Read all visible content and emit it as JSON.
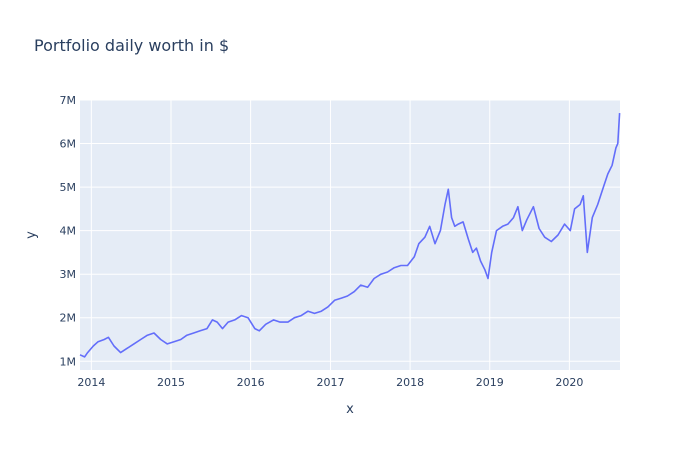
{
  "chart_data": {
    "type": "line",
    "title": "Portfolio daily worth in $",
    "xlabel": "x",
    "ylabel": "y",
    "xlim": [
      "2013-11-10",
      "2020-08-20"
    ],
    "ylim": [
      800000,
      7000000
    ],
    "x_ticks": [
      {
        "value": "2014-01-01",
        "label": "2014"
      },
      {
        "value": "2015-01-01",
        "label": "2015"
      },
      {
        "value": "2016-01-01",
        "label": "2016"
      },
      {
        "value": "2017-01-01",
        "label": "2017"
      },
      {
        "value": "2018-01-01",
        "label": "2018"
      },
      {
        "value": "2019-01-01",
        "label": "2019"
      },
      {
        "value": "2020-01-01",
        "label": "2020"
      }
    ],
    "y_ticks": [
      {
        "value": 1000000,
        "label": "1M"
      },
      {
        "value": 2000000,
        "label": "2M"
      },
      {
        "value": 3000000,
        "label": "3M"
      },
      {
        "value": 4000000,
        "label": "4M"
      },
      {
        "value": 5000000,
        "label": "5M"
      },
      {
        "value": 6000000,
        "label": "6M"
      },
      {
        "value": 7000000,
        "label": "7M"
      }
    ],
    "grid": true,
    "colors": {
      "plot_bg": "#e5ecf6",
      "grid": "#ffffff",
      "line": "#636efa",
      "text": "#2a3f5f"
    },
    "series": [
      {
        "x": [
          "2013-11-10",
          "2013-12-01",
          "2013-12-15",
          "2014-01-10",
          "2014-02-01",
          "2014-03-01",
          "2014-03-20",
          "2014-04-15",
          "2014-05-15",
          "2014-06-15",
          "2014-07-15",
          "2014-08-15",
          "2014-09-15",
          "2014-10-15",
          "2014-11-15",
          "2014-12-15",
          "2015-01-15",
          "2015-02-15",
          "2015-03-15",
          "2015-04-15",
          "2015-05-15",
          "2015-06-15",
          "2015-07-10",
          "2015-08-01",
          "2015-08-25",
          "2015-09-20",
          "2015-10-20",
          "2015-11-20",
          "2015-12-20",
          "2016-01-20",
          "2016-02-10",
          "2016-03-10",
          "2016-04-15",
          "2016-05-15",
          "2016-06-20",
          "2016-07-20",
          "2016-08-20",
          "2016-09-20",
          "2016-10-20",
          "2016-11-20",
          "2016-12-20",
          "2017-01-20",
          "2017-02-20",
          "2017-03-20",
          "2017-04-20",
          "2017-05-20",
          "2017-06-20",
          "2017-07-20",
          "2017-08-20",
          "2017-09-20",
          "2017-10-20",
          "2017-11-20",
          "2017-12-20",
          "2018-01-20",
          "2018-02-10",
          "2018-03-10",
          "2018-04-01",
          "2018-04-25",
          "2018-05-20",
          "2018-06-10",
          "2018-06-25",
          "2018-07-10",
          "2018-07-25",
          "2018-08-10",
          "2018-09-01",
          "2018-09-25",
          "2018-10-15",
          "2018-11-01",
          "2018-11-20",
          "2018-12-10",
          "2018-12-24",
          "2019-01-10",
          "2019-02-01",
          "2019-03-01",
          "2019-03-25",
          "2019-04-20",
          "2019-05-10",
          "2019-05-30",
          "2019-06-20",
          "2019-07-20",
          "2019-08-15",
          "2019-09-10",
          "2019-10-10",
          "2019-11-10",
          "2019-12-10",
          "2020-01-05",
          "2020-01-25",
          "2020-02-19",
          "2020-03-05",
          "2020-03-23",
          "2020-04-15",
          "2020-05-10",
          "2020-06-05",
          "2020-06-25",
          "2020-07-15",
          "2020-08-01",
          "2020-08-10",
          "2020-08-18"
        ],
        "y": [
          1150000,
          1100000,
          1200000,
          1350000,
          1450000,
          1500000,
          1550000,
          1350000,
          1200000,
          1300000,
          1400000,
          1500000,
          1600000,
          1650000,
          1500000,
          1400000,
          1450000,
          1500000,
          1600000,
          1650000,
          1700000,
          1750000,
          1950000,
          1900000,
          1750000,
          1900000,
          1950000,
          2050000,
          2000000,
          1750000,
          1700000,
          1850000,
          1950000,
          1900000,
          1900000,
          2000000,
          2050000,
          2150000,
          2100000,
          2150000,
          2250000,
          2400000,
          2450000,
          2500000,
          2600000,
          2750000,
          2700000,
          2900000,
          3000000,
          3050000,
          3150000,
          3200000,
          3200000,
          3400000,
          3700000,
          3850000,
          4100000,
          3700000,
          4000000,
          4600000,
          4950000,
          4300000,
          4100000,
          4150000,
          4200000,
          3800000,
          3500000,
          3600000,
          3300000,
          3100000,
          2900000,
          3500000,
          4000000,
          4100000,
          4150000,
          4300000,
          4550000,
          4000000,
          4250000,
          4550000,
          4050000,
          3850000,
          3750000,
          3900000,
          4150000,
          4000000,
          4500000,
          4600000,
          4800000,
          3500000,
          4300000,
          4600000,
          5000000,
          5300000,
          5500000,
          5900000,
          6000000,
          6700000
        ]
      }
    ]
  }
}
